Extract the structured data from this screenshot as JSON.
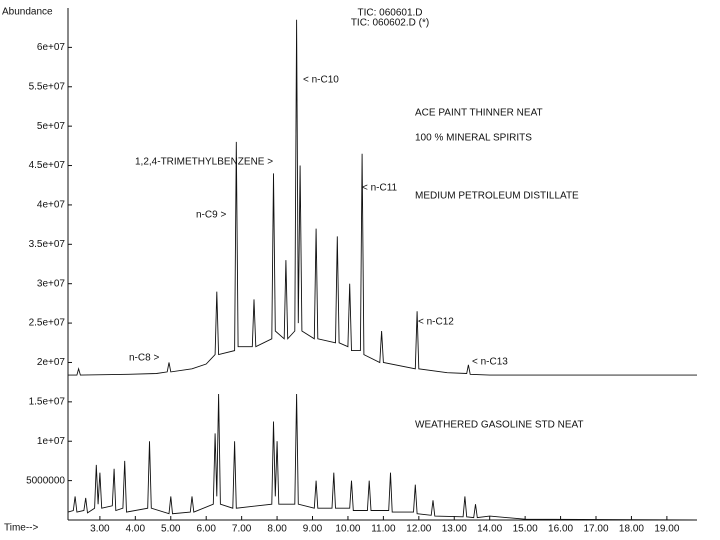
{
  "chart_data": {
    "type": "line",
    "ylabel": "Abundance",
    "xlabel": "Time-->",
    "xlim": [
      2.1,
      19.85
    ],
    "ylim": [
      0,
      65000000
    ],
    "xticks": [
      {
        "value": 3,
        "label": "3.00"
      },
      {
        "value": 4,
        "label": "4.00"
      },
      {
        "value": 5,
        "label": "5.00"
      },
      {
        "value": 6,
        "label": "6.00"
      },
      {
        "value": 7,
        "label": "7.00"
      },
      {
        "value": 8,
        "label": "8.00"
      },
      {
        "value": 9,
        "label": "9.00"
      },
      {
        "value": 10,
        "label": "10.00"
      },
      {
        "value": 11,
        "label": "11.00"
      },
      {
        "value": 12,
        "label": "12.00"
      },
      {
        "value": 13,
        "label": "13.00"
      },
      {
        "value": 14,
        "label": "14.00"
      },
      {
        "value": 15,
        "label": "15.00"
      },
      {
        "value": 16,
        "label": "16.00"
      },
      {
        "value": 17,
        "label": "17.00"
      },
      {
        "value": 18,
        "label": "18.00"
      },
      {
        "value": 19,
        "label": "19.00"
      }
    ],
    "yticks": [
      5000000,
      {
        "value": 10000000,
        "label": "1e+07"
      },
      {
        "value": 15000000,
        "label": "1.5e+07"
      },
      {
        "value": 20000000,
        "label": "2e+07"
      },
      {
        "value": 25000000,
        "label": "2.5e+07"
      },
      {
        "value": 30000000,
        "label": "3e+07"
      },
      {
        "value": 35000000,
        "label": "3.5e+07"
      },
      {
        "value": 40000000,
        "label": "4e+07"
      },
      {
        "value": 45000000,
        "label": "4.5e+07"
      },
      {
        "value": 50000000,
        "label": "5e+07"
      },
      {
        "value": 55000000,
        "label": "5.5e+07"
      },
      {
        "value": 60000000,
        "label": "6e+07"
      }
    ],
    "series": [
      {
        "name": "TIC: 060601.D",
        "color": "#111111",
        "x": [
          2.1,
          2.35,
          2.4,
          2.45,
          3.8,
          4.6,
          4.9,
          4.95,
          5.0,
          5.6,
          6.0,
          6.25,
          6.3,
          6.35,
          6.8,
          6.85,
          6.9,
          7.3,
          7.35,
          7.4,
          7.85,
          7.9,
          7.95,
          8.2,
          8.25,
          8.3,
          8.5,
          8.55,
          8.6,
          8.65,
          8.7,
          9.05,
          9.1,
          9.15,
          9.65,
          9.7,
          9.75,
          10.0,
          10.05,
          10.1,
          10.35,
          10.4,
          10.45,
          10.9,
          10.95,
          11.0,
          11.9,
          11.95,
          12.0,
          12.8,
          13.35,
          13.4,
          13.45,
          14.0,
          19.85
        ],
        "values": [
          18400000,
          18400000,
          19200000,
          18400000,
          18500000,
          18600000,
          18800000,
          20000000,
          18800000,
          19200000,
          19800000,
          21000000,
          29000000,
          21000000,
          21500000,
          48000000,
          22000000,
          22000000,
          28000000,
          22000000,
          23000000,
          44000000,
          24000000,
          23000000,
          33000000,
          23000000,
          24000000,
          63500000,
          25000000,
          45000000,
          24000000,
          23000000,
          37000000,
          23000000,
          22500000,
          36000000,
          22500000,
          22000000,
          30000000,
          21500000,
          21500000,
          46500000,
          21000000,
          20000000,
          24000000,
          20000000,
          19200000,
          26500000,
          19200000,
          18700000,
          18600000,
          19700000,
          18500000,
          18400000,
          18400000
        ]
      },
      {
        "name": "TIC: 060602.D (*)",
        "color": "#111111",
        "x": [
          2.1,
          2.25,
          2.3,
          2.35,
          2.55,
          2.6,
          2.65,
          2.85,
          2.9,
          2.95,
          3.0,
          3.05,
          3.35,
          3.4,
          3.45,
          3.65,
          3.7,
          3.75,
          4.35,
          4.4,
          4.45,
          4.95,
          5.0,
          5.05,
          5.55,
          5.6,
          5.65,
          6.2,
          6.25,
          6.3,
          6.35,
          6.4,
          6.75,
          6.8,
          6.85,
          7.85,
          7.9,
          7.95,
          8.0,
          8.05,
          8.5,
          8.55,
          8.6,
          9.05,
          9.1,
          9.15,
          9.55,
          9.6,
          9.65,
          10.05,
          10.1,
          10.15,
          10.55,
          10.6,
          10.65,
          11.15,
          11.2,
          11.25,
          11.85,
          11.9,
          11.95,
          12.35,
          12.4,
          12.45,
          13.25,
          13.3,
          13.35,
          13.55,
          13.6,
          13.65,
          14.0,
          15.0,
          19.85
        ],
        "values": [
          1000000,
          1200000,
          3000000,
          1000000,
          1200000,
          2800000,
          900000,
          1500000,
          7000000,
          2000000,
          6000000,
          1500000,
          1800000,
          6500000,
          1200000,
          1500000,
          7500000,
          1000000,
          1500000,
          10000000,
          1500000,
          800000,
          3000000,
          800000,
          1000000,
          3000000,
          1000000,
          2000000,
          11000000,
          3000000,
          16000000,
          2000000,
          1500000,
          10000000,
          1500000,
          2000000,
          12500000,
          3000000,
          10000000,
          2000000,
          2000000,
          16000000,
          2000000,
          1500000,
          5000000,
          1500000,
          1500000,
          6000000,
          1500000,
          1500000,
          5000000,
          1200000,
          1200000,
          5000000,
          1200000,
          1200000,
          6000000,
          1000000,
          1000000,
          4500000,
          800000,
          600000,
          2500000,
          500000,
          400000,
          3000000,
          400000,
          300000,
          2000000,
          300000,
          500000,
          100000,
          0
        ]
      }
    ],
    "annotations": [
      "< n-C10",
      "ACE PAINT THINNER  NEAT",
      "100 % MINERAL SPIRITS",
      "1,2,4-TRIMETHYLBENZENE >",
      "< n-C11",
      "MEDIUM PETROLEUM DISTILLATE",
      "n-C9 >",
      "< n-C12",
      "n-C8 >",
      "< n-C13",
      "WEATHERED GASOLINE STD  NEAT"
    ]
  }
}
